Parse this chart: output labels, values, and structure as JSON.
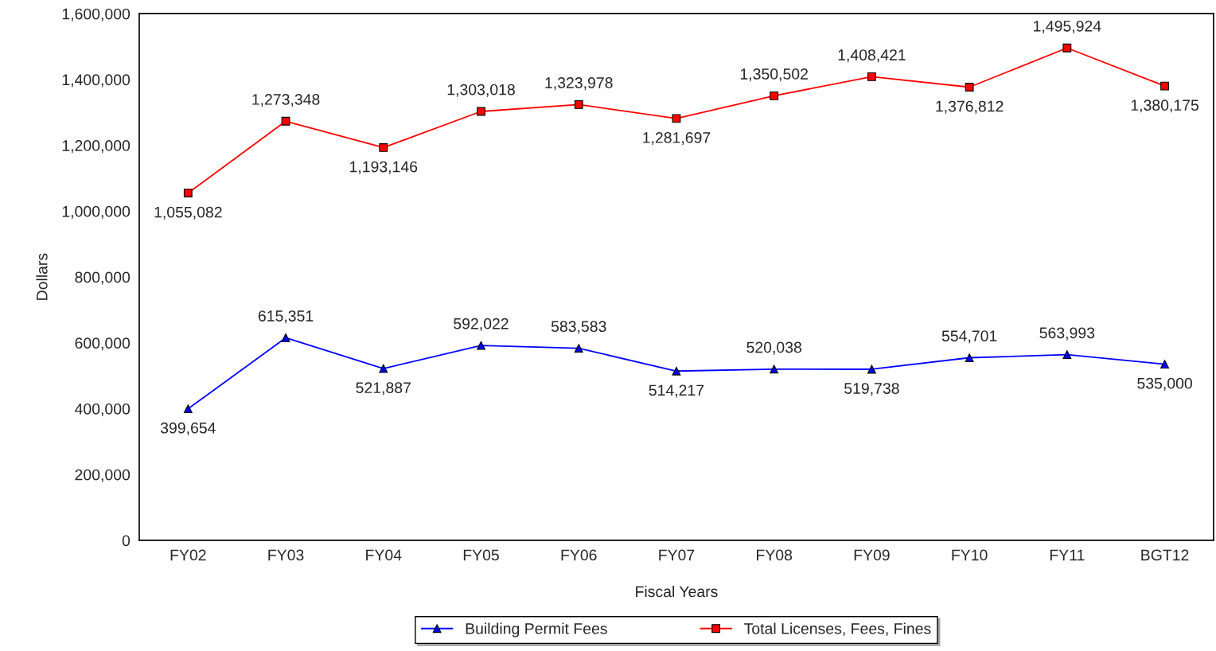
{
  "chart_data": {
    "type": "line",
    "xlabel": "Fiscal Years",
    "ylabel": "Dollars",
    "categories": [
      "FY02",
      "FY03",
      "FY04",
      "FY05",
      "FY06",
      "FY07",
      "FY08",
      "FY09",
      "FY10",
      "FY11",
      "BGT12"
    ],
    "series": [
      {
        "name": "Building Permit Fees",
        "color": "#0000ff",
        "marker": "triangle",
        "values": [
          399654,
          615351,
          521887,
          592022,
          583583,
          514217,
          520038,
          519738,
          554701,
          563993,
          535000
        ],
        "value_labels": [
          "399,654",
          "615,351",
          "521,887",
          "592,022",
          "583,583",
          "514,217",
          "520,038",
          "519,738",
          "554,701",
          "563,993",
          "535,000"
        ]
      },
      {
        "name": "Total Licenses, Fees, Fines",
        "color": "#ff0000",
        "marker": "square",
        "values": [
          1055082,
          1273348,
          1193146,
          1303018,
          1323978,
          1281697,
          1350502,
          1408421,
          1376812,
          1495924,
          1380175
        ],
        "value_labels": [
          "1,055,082",
          "1,273,348",
          "1,193,146",
          "1,303,018",
          "1,323,978",
          "1,281,697",
          "1,350,502",
          "1,408,421",
          "1,376,812",
          "1,495,924",
          "1,380,175"
        ]
      }
    ],
    "ylim": [
      0,
      1600000
    ],
    "yticks": [
      {
        "value": 0,
        "label": "0"
      },
      {
        "value": 200000,
        "label": "200,000"
      },
      {
        "value": 400000,
        "label": "400,000"
      },
      {
        "value": 600000,
        "label": "600,000"
      },
      {
        "value": 800000,
        "label": "800,000"
      },
      {
        "value": 1000000,
        "label": "1,000,000"
      },
      {
        "value": 1200000,
        "label": "1,200,000"
      },
      {
        "value": 1400000,
        "label": "1,400,000"
      },
      {
        "value": 1600000,
        "label": "1,600,000"
      }
    ],
    "legend": "bottom",
    "grid": false,
    "line_style": "solid"
  }
}
